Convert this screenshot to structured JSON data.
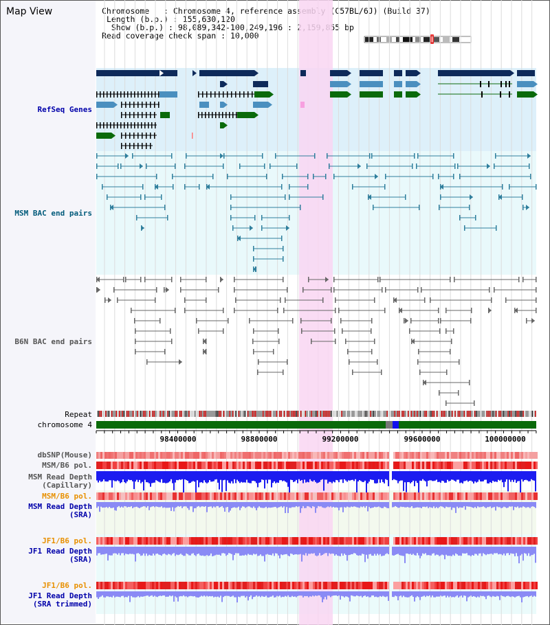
{
  "title": "Map View",
  "info": {
    "chromosome_label": "Chromosome",
    "chromosome_value": "Chromosome 4, reference assembly (C57BL/6J) (Build 37)",
    "length_label": "Length (b.p.)",
    "length_value": "155,630,120",
    "show_label": "Show (b.p.)",
    "show_value": "98,089,342-100,249,196 : 2,159,855 bp",
    "coverage_label": "Read coverage check span",
    "coverage_value": "10,000"
  },
  "tracks": {
    "refseq": "RefSeq Genes",
    "msm_bac": "MSM BAC end pairs",
    "b6n_bac": "B6N BAC end pairs",
    "repeat": "Repeat",
    "chromosome": "chromosome 4",
    "dbsnp": "dbSNP(Mouse)",
    "msm_b6_pol": "MSM/B6 pol.",
    "msm_read_depth_cap_1": "MSM Read Depth",
    "msm_read_depth_cap_2": "(Capillary)",
    "msm_b6_pol_sra": "MSM/B6 pol.",
    "msm_read_depth_sra_1": "MSM Read Depth",
    "msm_read_depth_sra_2": "(SRA)",
    "jf1_b6_pol": "JF1/B6 pol.",
    "jf1_read_depth_1": "JF1 Read Depth",
    "jf1_read_depth_2": "(SRA)",
    "jf1_b6_pol_2": "JF1/B6 pol.",
    "jf1_read_depth_trim_1": "JF1 Read Depth",
    "jf1_read_depth_trim_2": "(SRA trimmed)"
  },
  "axis": {
    "ticks": [
      "98400000",
      "98800000",
      "99200000",
      "99600000",
      "100000000"
    ]
  },
  "colors": {
    "refseq_bg": "#ddf0fa",
    "bac_bg": "#e9f9fb",
    "highlight": "#f9d6f2",
    "gene_dark": "#0e2a5a",
    "gene_mid": "#4a8fbf",
    "gene_green": "#0a6a0a",
    "msm_line": "#2e7e9c",
    "b6n_line": "#666666",
    "depth_dark": "#1c1cf0",
    "depth_light": "#8a8af5",
    "snp_red": "#f06a6a",
    "label_blue": "#0000aa",
    "label_orange": "#e89000",
    "label_teal": "#005a7a"
  }
}
